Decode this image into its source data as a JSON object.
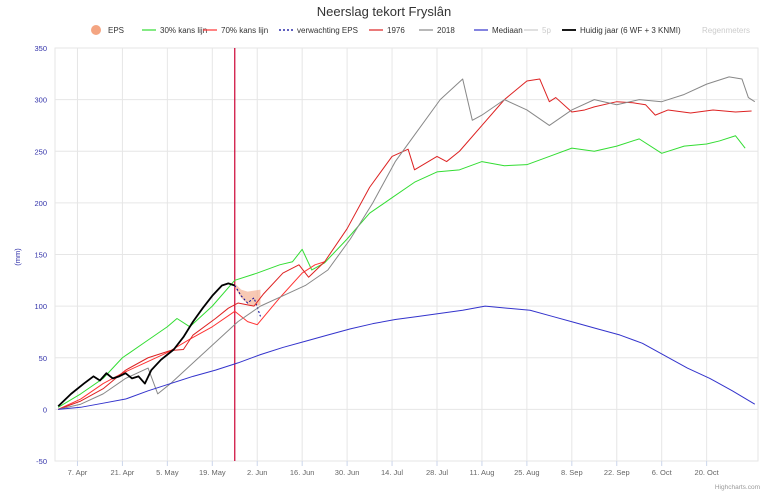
{
  "chart_data": {
    "type": "line",
    "title": "Neerslag tekort Fryslân",
    "ylabel": "(mm)",
    "ylim": [
      -50,
      350
    ],
    "yticks": [
      -50,
      0,
      50,
      100,
      150,
      200,
      250,
      300,
      350
    ],
    "xlim": [
      "2024-03-31",
      "2024-11-05"
    ],
    "xticks": [
      "7. Apr",
      "21. Apr",
      "5. May",
      "19. May",
      "2. Jun",
      "16. Jun",
      "30. Jun",
      "14. Jul",
      "28. Jul",
      "11. Aug",
      "25. Aug",
      "8. Sep",
      "22. Sep",
      "6. Oct",
      "20. Oct"
    ],
    "xtick_dates": [
      "2024-04-07",
      "2024-04-21",
      "2024-05-05",
      "2024-05-19",
      "2024-06-02",
      "2024-06-16",
      "2024-06-30",
      "2024-07-14",
      "2024-07-28",
      "2024-08-11",
      "2024-08-25",
      "2024-09-08",
      "2024-09-22",
      "2024-10-06",
      "2024-10-20"
    ],
    "today_marker": "2024-05-26",
    "grid": true,
    "legend_position": "top",
    "credits": "Highcharts.com",
    "series": [
      {
        "name": "EPS",
        "kind": "area",
        "color": "#f4a582",
        "x": [
          "2024-05-26",
          "2024-05-28",
          "2024-05-30",
          "2024-06-01",
          "2024-06-03"
        ],
        "low": [
          118,
          108,
          102,
          100,
          101
        ],
        "high": [
          122,
          116,
          114,
          115,
          116
        ]
      },
      {
        "name": "30% kans lijn",
        "color": "#33dd33",
        "x": [
          "2024-04-01",
          "2024-04-08",
          "2024-04-15",
          "2024-04-21",
          "2024-04-28",
          "2024-05-05",
          "2024-05-08",
          "2024-05-12",
          "2024-05-19",
          "2024-05-26",
          "2024-06-02",
          "2024-06-09",
          "2024-06-13",
          "2024-06-16",
          "2024-06-19",
          "2024-06-23",
          "2024-06-30",
          "2024-07-07",
          "2024-07-14",
          "2024-07-21",
          "2024-07-28",
          "2024-08-04",
          "2024-08-11",
          "2024-08-18",
          "2024-08-25",
          "2024-09-01",
          "2024-09-08",
          "2024-09-15",
          "2024-09-22",
          "2024-09-29",
          "2024-10-06",
          "2024-10-13",
          "2024-10-20",
          "2024-10-24",
          "2024-10-29",
          "2024-11-01"
        ],
        "y": [
          2,
          15,
          30,
          50,
          65,
          80,
          88,
          80,
          100,
          125,
          132,
          140,
          143,
          155,
          135,
          142,
          165,
          190,
          205,
          220,
          230,
          232,
          240,
          236,
          237,
          245,
          253,
          250,
          255,
          262,
          248,
          255,
          257,
          260,
          265,
          253
        ]
      },
      {
        "name": "70% kans lijn",
        "color": "#ff3333",
        "x": [
          "2024-04-01",
          "2024-04-08",
          "2024-04-15",
          "2024-04-21",
          "2024-04-28",
          "2024-05-05",
          "2024-05-12",
          "2024-05-19",
          "2024-05-26",
          "2024-05-30",
          "2024-06-02",
          "2024-06-09",
          "2024-06-16",
          "2024-06-20",
          "2024-06-23"
        ],
        "y": [
          0,
          10,
          25,
          35,
          45,
          55,
          68,
          80,
          95,
          85,
          82,
          108,
          132,
          140,
          143
        ]
      },
      {
        "name": "verwachting EPS",
        "color": "#000099",
        "dashed": true,
        "x": [
          "2024-05-26",
          "2024-05-28",
          "2024-05-30",
          "2024-06-01",
          "2024-06-03"
        ],
        "y": [
          120,
          110,
          103,
          108,
          90
        ]
      },
      {
        "name": "1976",
        "color": "#dd2222",
        "x": [
          "2024-04-01",
          "2024-04-08",
          "2024-04-15",
          "2024-04-22",
          "2024-04-29",
          "2024-05-06",
          "2024-05-10",
          "2024-05-13",
          "2024-05-20",
          "2024-05-24",
          "2024-05-27",
          "2024-06-01",
          "2024-06-04",
          "2024-06-10",
          "2024-06-15",
          "2024-06-18",
          "2024-06-23",
          "2024-06-30",
          "2024-07-07",
          "2024-07-14",
          "2024-07-19",
          "2024-07-21",
          "2024-07-28",
          "2024-07-31",
          "2024-08-04",
          "2024-08-11",
          "2024-08-18",
          "2024-08-25",
          "2024-08-29",
          "2024-09-01",
          "2024-09-03",
          "2024-09-08",
          "2024-09-12",
          "2024-09-15",
          "2024-09-22",
          "2024-09-27",
          "2024-10-01",
          "2024-10-04",
          "2024-10-08",
          "2024-10-15",
          "2024-10-22",
          "2024-10-29",
          "2024-11-03"
        ],
        "y": [
          0,
          8,
          20,
          38,
          50,
          57,
          58,
          72,
          88,
          98,
          103,
          100,
          112,
          132,
          140,
          128,
          143,
          175,
          215,
          245,
          252,
          232,
          245,
          240,
          250,
          275,
          300,
          318,
          320,
          298,
          302,
          288,
          290,
          293,
          298,
          297,
          295,
          285,
          290,
          287,
          290,
          288,
          289
        ]
      },
      {
        "name": "2018",
        "color": "#888888",
        "x": [
          "2024-04-01",
          "2024-04-08",
          "2024-04-15",
          "2024-04-22",
          "2024-04-29",
          "2024-05-02",
          "2024-05-06",
          "2024-05-13",
          "2024-05-20",
          "2024-05-27",
          "2024-06-03",
          "2024-06-10",
          "2024-06-17",
          "2024-06-24",
          "2024-07-01",
          "2024-07-08",
          "2024-07-15",
          "2024-07-22",
          "2024-07-29",
          "2024-08-05",
          "2024-08-08",
          "2024-08-11",
          "2024-08-18",
          "2024-08-25",
          "2024-09-01",
          "2024-09-08",
          "2024-09-15",
          "2024-09-22",
          "2024-09-29",
          "2024-10-06",
          "2024-10-13",
          "2024-10-20",
          "2024-10-27",
          "2024-10-31",
          "2024-11-02",
          "2024-11-04"
        ],
        "y": [
          0,
          5,
          15,
          30,
          40,
          15,
          25,
          45,
          65,
          85,
          100,
          110,
          120,
          135,
          165,
          200,
          240,
          270,
          300,
          320,
          280,
          285,
          300,
          290,
          275,
          290,
          300,
          295,
          300,
          298,
          305,
          315,
          322,
          320,
          302,
          298
        ]
      },
      {
        "name": "Mediaan",
        "color": "#3333cc",
        "x": [
          "2024-04-01",
          "2024-04-08",
          "2024-04-15",
          "2024-04-22",
          "2024-04-29",
          "2024-05-06",
          "2024-05-13",
          "2024-05-20",
          "2024-05-27",
          "2024-06-03",
          "2024-06-10",
          "2024-06-17",
          "2024-06-24",
          "2024-07-01",
          "2024-07-08",
          "2024-07-15",
          "2024-07-22",
          "2024-07-29",
          "2024-08-05",
          "2024-08-12",
          "2024-08-19",
          "2024-08-26",
          "2024-09-02",
          "2024-09-09",
          "2024-09-16",
          "2024-09-23",
          "2024-09-30",
          "2024-10-07",
          "2024-10-14",
          "2024-10-21",
          "2024-10-28",
          "2024-11-04"
        ],
        "y": [
          0,
          2,
          6,
          10,
          18,
          25,
          32,
          38,
          45,
          53,
          60,
          66,
          72,
          78,
          83,
          87,
          90,
          93,
          96,
          100,
          98,
          96,
          90,
          84,
          78,
          72,
          64,
          52,
          40,
          30,
          18,
          5
        ]
      },
      {
        "name": "5p",
        "color": "#22cc22",
        "visible": false,
        "x": [],
        "y": []
      },
      {
        "name": "Huidig jaar (6 WF + 3 KNMI)",
        "color": "#000000",
        "bold": true,
        "x": [
          "2024-04-01",
          "2024-04-05",
          "2024-04-09",
          "2024-04-12",
          "2024-04-14",
          "2024-04-16",
          "2024-04-18",
          "2024-04-20",
          "2024-04-22",
          "2024-04-24",
          "2024-04-26",
          "2024-04-28",
          "2024-04-30",
          "2024-05-03",
          "2024-05-07",
          "2024-05-10",
          "2024-05-13",
          "2024-05-16",
          "2024-05-19",
          "2024-05-22",
          "2024-05-24",
          "2024-05-26"
        ],
        "y": [
          3,
          15,
          25,
          32,
          28,
          35,
          30,
          32,
          35,
          30,
          32,
          25,
          38,
          48,
          58,
          70,
          85,
          98,
          110,
          120,
          122,
          120
        ]
      },
      {
        "name": "Regenmeters",
        "color": "#cccccc",
        "visible": false,
        "x": [],
        "y": []
      }
    ]
  }
}
